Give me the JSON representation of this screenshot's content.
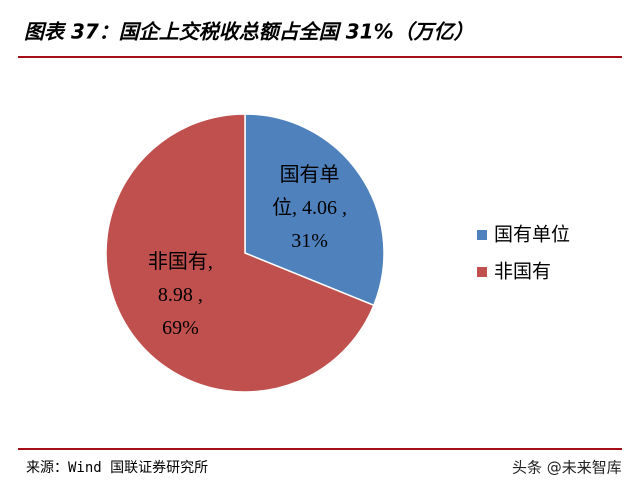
{
  "chart_data": {
    "type": "pie",
    "title": "图表 37：国企上交税收总额占全国 31%（万亿）",
    "categories": [
      "国有单位",
      "非国有"
    ],
    "values": [
      4.06,
      8.98
    ],
    "percents": [
      31,
      69
    ],
    "value_labels": [
      [
        "国有单",
        "位, 4.06 ,",
        "31%"
      ],
      [
        "非国有,",
        "8.98 ,",
        "69%"
      ]
    ],
    "colors": [
      "#4f81bd",
      "#c0504d"
    ],
    "legend": "right",
    "source": "来源：Wind 国联证券研究所",
    "watermark": "头条 @未来智库"
  }
}
